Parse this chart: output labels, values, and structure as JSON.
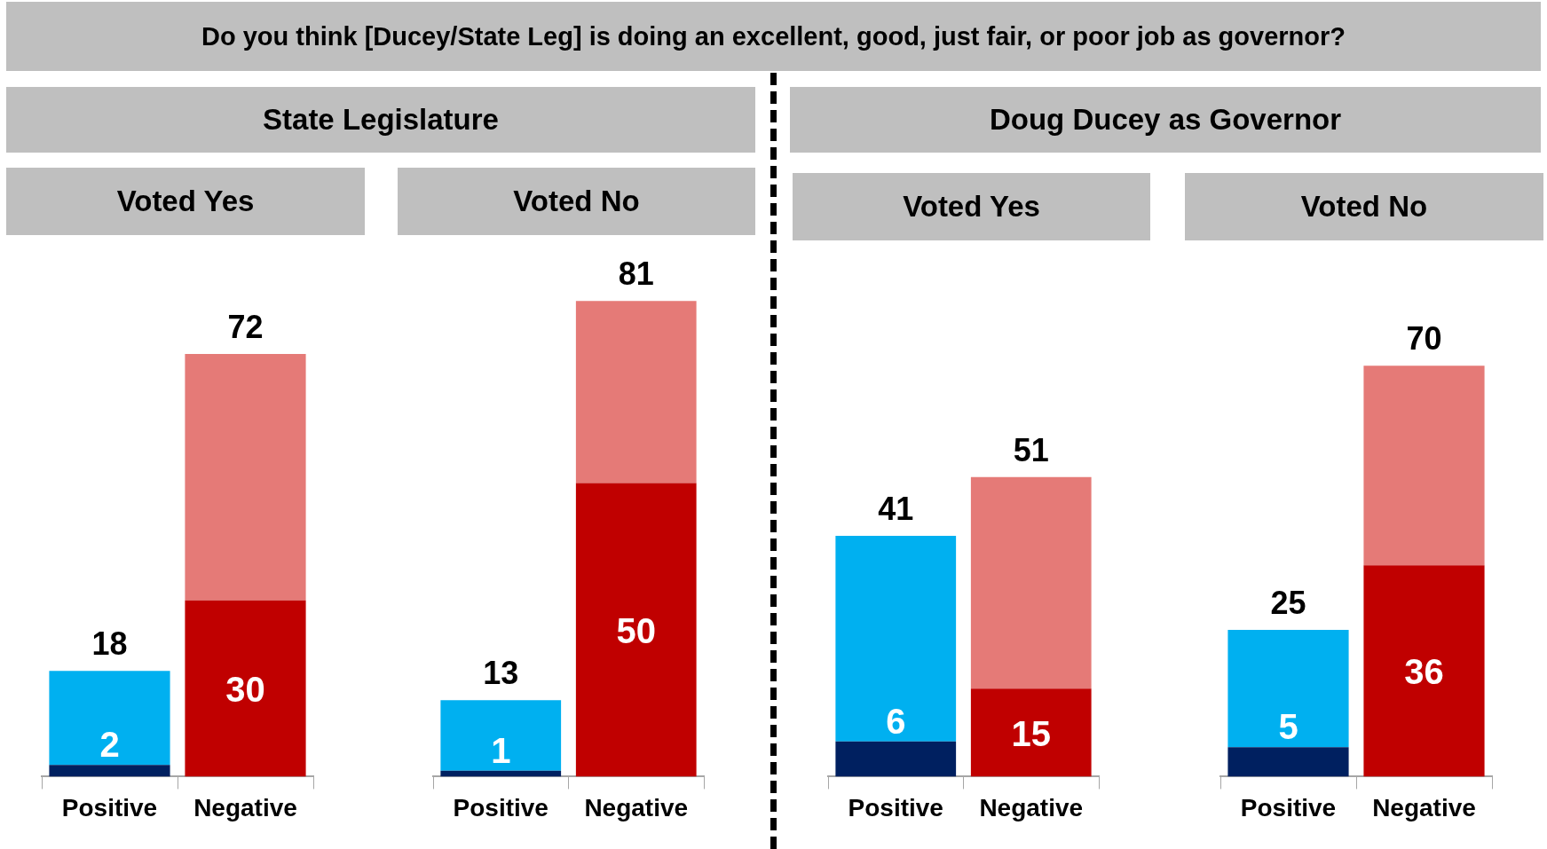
{
  "chart_data": [
    {
      "type": "other",
      "title": "Do you think [Ducey/State Leg] is doing an excellent, good, just fair, or poor job as governor?"
    },
    {
      "type": "other",
      "title": "State Legislature"
    },
    {
      "type": "bar",
      "title": "Voted Yes",
      "categories": [
        "Positive",
        "Negative"
      ],
      "stacked": true,
      "totals": [
        "18",
        "72"
      ],
      "series": [
        {
          "colors": [
            "#002060",
            "#c00000"
          ],
          "values": [
            2,
            30
          ],
          "value_labels": [
            "2",
            "30"
          ]
        },
        {
          "colors": [
            "#00b0f0",
            "#e57a77"
          ],
          "values": [
            16,
            42
          ]
        }
      ]
    },
    {
      "type": "bar",
      "title": "Voted No",
      "categories": [
        "Positive",
        "Negative"
      ],
      "stacked": true,
      "totals": [
        "13",
        "81"
      ],
      "series": [
        {
          "colors": [
            "#002060",
            "#c00000"
          ],
          "values": [
            1,
            50
          ],
          "value_labels": [
            "1",
            "50"
          ]
        },
        {
          "colors": [
            "#00b0f0",
            "#e57a77"
          ],
          "values": [
            12,
            31
          ]
        }
      ]
    },
    {
      "type": "other",
      "title": "Doug Ducey as Governor"
    },
    {
      "type": "bar",
      "title": "Voted Yes",
      "categories": [
        "Positive",
        "Negative"
      ],
      "stacked": true,
      "totals": [
        "41",
        "51"
      ],
      "series": [
        {
          "colors": [
            "#002060",
            "#c00000"
          ],
          "values": [
            6,
            15
          ],
          "value_labels": [
            "6",
            "15"
          ]
        },
        {
          "colors": [
            "#00b0f0",
            "#e57a77"
          ],
          "values": [
            35,
            36
          ]
        }
      ]
    },
    {
      "type": "bar",
      "title": "Voted No",
      "categories": [
        "Positive",
        "Negative"
      ],
      "stacked": true,
      "totals": [
        "25",
        "70"
      ],
      "series": [
        {
          "colors": [
            "#002060",
            "#c00000"
          ],
          "values": [
            5,
            36
          ],
          "value_labels": [
            "5",
            "36"
          ]
        },
        {
          "colors": [
            "#00b0f0",
            "#e57a77"
          ],
          "values": [
            20,
            34
          ]
        }
      ]
    }
  ]
}
